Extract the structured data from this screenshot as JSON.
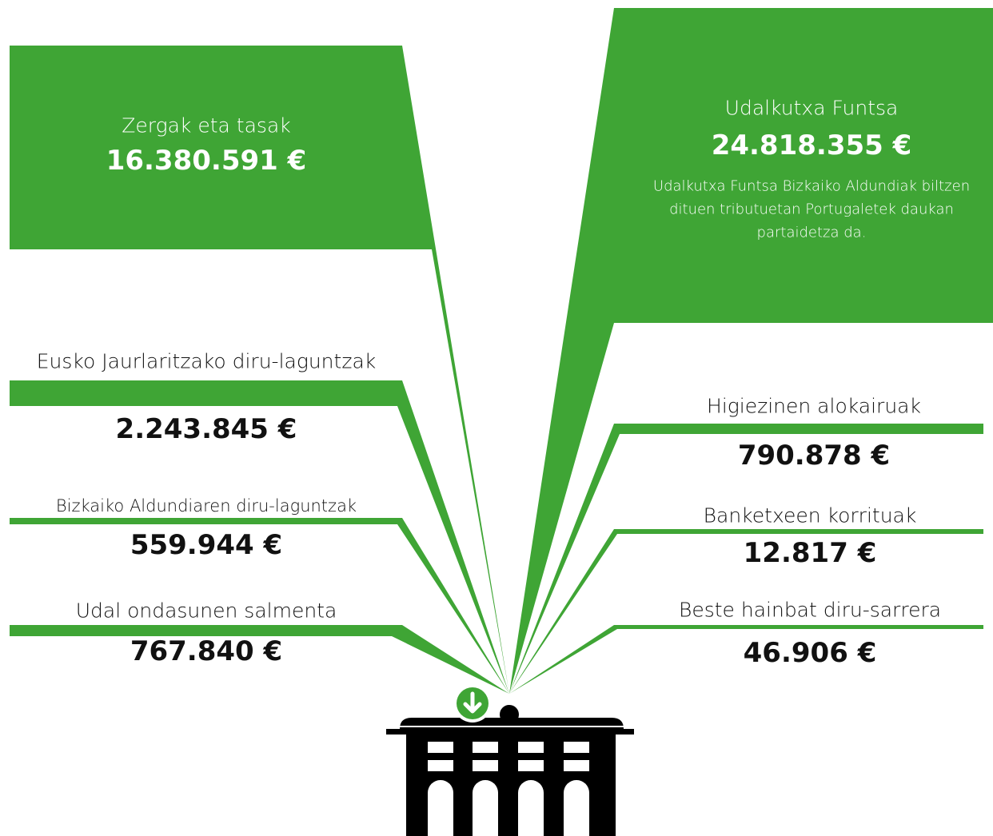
{
  "items": [
    {
      "label": "Zergak eta tasak",
      "amount": "16.380.591 €"
    },
    {
      "label": "Udalkutxa Funtsa",
      "amount": "24.818.355 €",
      "note": "Udalkutxa Funtsa Bizkaiko Aldundiak biltzen dituen tributuetan Portugaletek daukan partaidetza da."
    },
    {
      "label": "Eusko Jaurlaritzako diru-laguntzak",
      "amount": "2.243.845 €"
    },
    {
      "label": "Bizkaiko Aldundiaren diru-laguntzak",
      "amount": "559.944 €"
    },
    {
      "label": "Udal ondasunen salmenta",
      "amount": "767.840 €"
    },
    {
      "label": "Higiezinen alokairuak",
      "amount": "790.878 €"
    },
    {
      "label": "Banketxeen korrituak",
      "amount": "12.817 €"
    },
    {
      "label": "Beste hainbat diru-sarrera",
      "amount": "46.906 €"
    }
  ]
}
